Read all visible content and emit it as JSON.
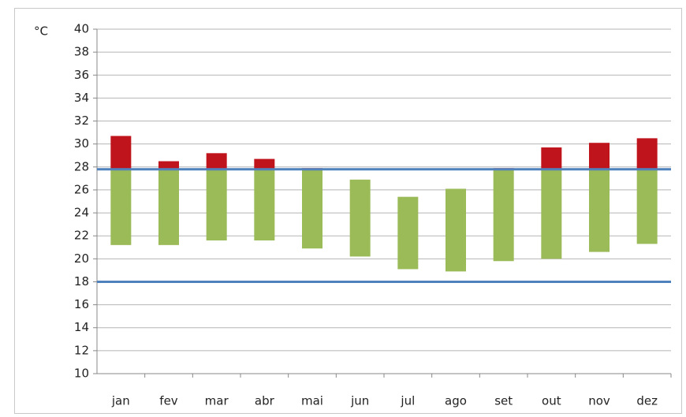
{
  "chart_data": {
    "type": "floating-bar",
    "y_label": "°C",
    "categories": [
      "jan",
      "fev",
      "mar",
      "abr",
      "mai",
      "jun",
      "jul",
      "ago",
      "set",
      "out",
      "nov",
      "dez"
    ],
    "min_values": [
      21.2,
      21.2,
      21.6,
      21.6,
      20.9,
      20.2,
      19.1,
      18.9,
      19.8,
      20.0,
      20.6,
      21.3
    ],
    "max_values": [
      30.7,
      28.5,
      29.2,
      28.7,
      27.9,
      26.9,
      25.4,
      26.1,
      27.9,
      29.7,
      30.1,
      30.5
    ],
    "below_color": "#9bbb59",
    "above_color": "#c0141c",
    "reference_lines": [
      27.8,
      18
    ],
    "reference_color": "#4f81bd",
    "ylim": [
      10,
      40
    ],
    "yticks": [
      10,
      12,
      14,
      16,
      18,
      20,
      22,
      24,
      26,
      28,
      30,
      32,
      34,
      36,
      38,
      40
    ],
    "grid": true
  }
}
